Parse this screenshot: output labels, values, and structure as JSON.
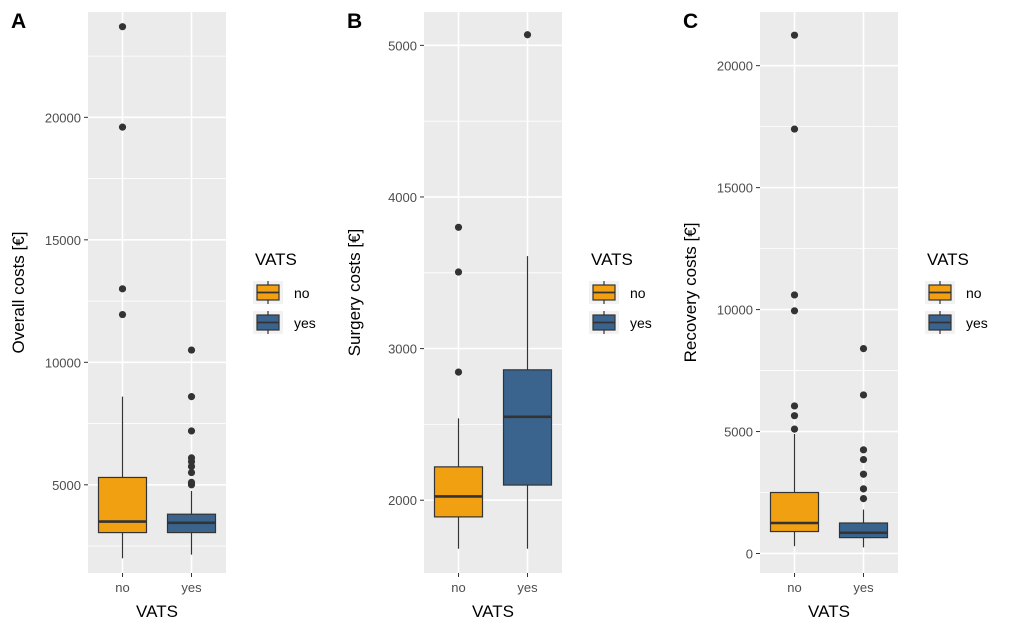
{
  "colors": {
    "no": "#F0A011",
    "yes": "#3A648E",
    "panel_bg": "#EBEBEB",
    "grid": "#FFFFFF",
    "ink": "#333333"
  },
  "chart_data": [
    {
      "panel_tag": "A",
      "type": "box",
      "xlabel": "VATS",
      "ylabel": "Overall costs [€]",
      "categories": [
        "no",
        "yes"
      ],
      "ylim": [
        1400,
        24300
      ],
      "yticks": [
        5000,
        10000,
        15000,
        20000
      ],
      "ytick_labels": [
        "5000",
        "10000",
        "15000",
        "20000"
      ],
      "legend": {
        "title": "VATS",
        "entries": [
          "no",
          "yes"
        ],
        "position": "right"
      },
      "boxes": [
        {
          "category": "no",
          "whisker_low": 2000,
          "q1": 3050,
          "median": 3500,
          "q3": 5300,
          "whisker_high": 8600,
          "outliers": [
            11950,
            13000,
            19600,
            23700
          ]
        },
        {
          "category": "yes",
          "whisker_low": 2150,
          "q1": 3050,
          "median": 3450,
          "q3": 3800,
          "whisker_high": 4750,
          "outliers": [
            5000,
            5100,
            5500,
            5750,
            5950,
            6100,
            7200,
            8600,
            10500
          ]
        }
      ]
    },
    {
      "panel_tag": "B",
      "type": "box",
      "xlabel": "VATS",
      "ylabel": "Surgery costs [€]",
      "categories": [
        "no",
        "yes"
      ],
      "ylim": [
        1520,
        5220
      ],
      "yticks": [
        2000,
        3000,
        4000,
        5000
      ],
      "ytick_labels": [
        "2000",
        "3000",
        "4000",
        "5000"
      ],
      "legend": {
        "title": "VATS",
        "entries": [
          "no",
          "yes"
        ],
        "position": "right"
      },
      "boxes": [
        {
          "category": "no",
          "whisker_low": 1680,
          "q1": 1890,
          "median": 2025,
          "q3": 2220,
          "whisker_high": 2540,
          "outliers": [
            2845,
            3505,
            3800
          ]
        },
        {
          "category": "yes",
          "whisker_low": 1680,
          "q1": 2100,
          "median": 2550,
          "q3": 2860,
          "whisker_high": 3610,
          "outliers": [
            5070
          ]
        }
      ]
    },
    {
      "panel_tag": "C",
      "type": "box",
      "xlabel": "VATS",
      "ylabel": "Recovery costs [€]",
      "categories": [
        "no",
        "yes"
      ],
      "ylim": [
        -800,
        22200
      ],
      "yticks": [
        0,
        5000,
        10000,
        15000,
        20000
      ],
      "ytick_labels": [
        "0",
        "5000",
        "10000",
        "15000",
        "20000"
      ],
      "legend": {
        "title": "VATS",
        "entries": [
          "no",
          "yes"
        ],
        "position": "right"
      },
      "boxes": [
        {
          "category": "no",
          "whisker_low": 300,
          "q1": 900,
          "median": 1250,
          "q3": 2500,
          "whisker_high": 4900,
          "outliers": [
            5100,
            5650,
            6050,
            9950,
            10600,
            17400,
            21250
          ]
        },
        {
          "category": "yes",
          "whisker_low": 250,
          "q1": 650,
          "median": 850,
          "q3": 1250,
          "whisker_high": 1800,
          "outliers": [
            2250,
            2650,
            3250,
            3850,
            4250,
            6500,
            8400
          ]
        }
      ]
    }
  ]
}
